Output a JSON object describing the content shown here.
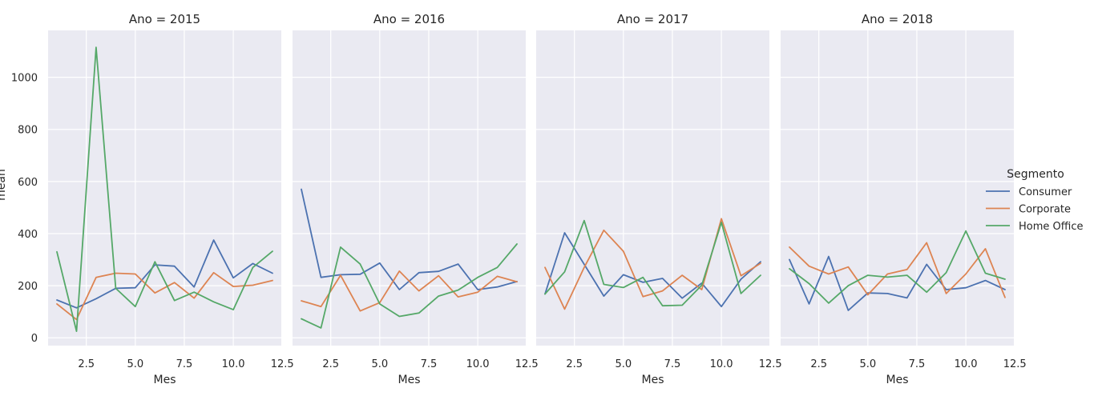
{
  "colors": {
    "Consumer": "#4c72b0",
    "Corporate": "#dd8452",
    "Home Office": "#55a868",
    "panel_background": "#eaeaf2",
    "grid": "#ffffff"
  },
  "chart_data": {
    "type": "line",
    "facet_by": "Ano",
    "facet_titles": [
      "Ano = 2015",
      "Ano = 2016",
      "Ano = 2017",
      "Ano = 2018"
    ],
    "xlabel": "Mes",
    "ylabel": "mean",
    "xlim": [
      0.55,
      12.45
    ],
    "ylim": [
      -30,
      1180
    ],
    "x_ticks": [
      2.5,
      5.0,
      7.5,
      10.0,
      12.5
    ],
    "x_tick_labels": [
      "2.5",
      "5.0",
      "7.5",
      "10.0",
      "12.5"
    ],
    "y_ticks": [
      0,
      200,
      400,
      600,
      800,
      1000
    ],
    "y_tick_labels": [
      "0",
      "200",
      "400",
      "600",
      "800",
      "1000"
    ],
    "grid": true,
    "legend": {
      "title": "Segmento",
      "placement": "right",
      "entries": [
        "Consumer",
        "Corporate",
        "Home Office"
      ]
    },
    "x": [
      1,
      2,
      3,
      4,
      5,
      6,
      7,
      8,
      9,
      10,
      11,
      12
    ],
    "facets": [
      {
        "title": "Ano = 2015",
        "series": [
          {
            "name": "Consumer",
            "values": [
              145,
              115,
              150,
              190,
              192,
              280,
              275,
              195,
              375,
              230,
              285,
              248
            ]
          },
          {
            "name": "Corporate",
            "values": [
              130,
              70,
              232,
              248,
              245,
              172,
              212,
              152,
              250,
              197,
              202,
              220
            ]
          },
          {
            "name": "Home Office",
            "values": [
              330,
              25,
              1115,
              190,
              120,
              292,
              143,
              175,
              138,
              108,
              270,
              332
            ]
          }
        ]
      },
      {
        "title": "Ano = 2016",
        "series": [
          {
            "name": "Consumer",
            "values": [
              570,
              232,
              242,
              244,
              287,
              185,
              250,
              255,
              283,
              185,
              195,
              216
            ]
          },
          {
            "name": "Corporate",
            "values": [
              142,
              120,
              240,
              103,
              135,
              256,
              180,
              238,
              157,
              175,
              236,
              215
            ]
          },
          {
            "name": "Home Office",
            "values": [
              73,
              38,
              348,
              283,
              130,
              82,
              95,
              160,
              183,
              232,
              270,
              360
            ]
          }
        ]
      },
      {
        "title": "Ano = 2017",
        "series": [
          {
            "name": "Consumer",
            "values": [
              168,
              403,
              282,
              160,
              242,
              213,
              228,
              152,
              210,
              120,
              225,
              292
            ]
          },
          {
            "name": "Corporate",
            "values": [
              270,
              110,
              270,
              413,
              332,
              158,
              180,
              240,
              185,
              457,
              238,
              286
            ]
          },
          {
            "name": "Home Office",
            "values": [
              168,
              253,
              450,
              205,
              193,
              232,
              123,
              125,
              202,
              443,
              170,
              240
            ]
          }
        ]
      },
      {
        "title": "Ano = 2018",
        "series": [
          {
            "name": "Consumer",
            "values": [
              300,
              130,
              312,
              105,
              172,
              170,
              153,
              282,
              185,
              192,
              220,
              185
            ]
          },
          {
            "name": "Corporate",
            "values": [
              348,
              275,
              245,
              272,
              165,
              245,
              262,
              365,
              170,
              245,
              342,
              155
            ]
          },
          {
            "name": "Home Office",
            "values": [
              265,
              208,
              133,
              200,
              240,
              233,
              240,
              175,
              250,
              410,
              248,
              225
            ]
          }
        ]
      }
    ]
  }
}
